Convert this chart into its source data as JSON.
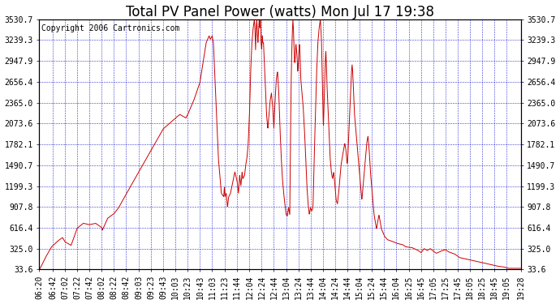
{
  "title": "Total PV Panel Power (watts) Mon Jul 17 19:38",
  "copyright": "Copyright 2006 Cartronics.com",
  "background_color": "#ffffff",
  "plot_background": "#ffffff",
  "line_color": "#cc0000",
  "grid_color": "#0000cc",
  "yticks": [
    33.6,
    325.0,
    616.4,
    907.8,
    1199.3,
    1490.7,
    1782.1,
    2073.6,
    2365.0,
    2656.4,
    2947.9,
    3239.3,
    3530.7
  ],
  "ylim": [
    33.6,
    3530.7
  ],
  "title_fontsize": 12,
  "tick_fontsize": 7,
  "copyright_fontsize": 7,
  "xtick_labels": [
    "06:20",
    "06:42",
    "07:02",
    "07:22",
    "07:42",
    "08:02",
    "08:22",
    "08:42",
    "09:03",
    "09:23",
    "09:43",
    "10:03",
    "10:23",
    "10:43",
    "11:03",
    "11:23",
    "11:44",
    "12:04",
    "12:24",
    "12:44",
    "13:04",
    "13:24",
    "13:44",
    "14:04",
    "14:24",
    "14:44",
    "15:04",
    "15:24",
    "15:44",
    "16:04",
    "16:25",
    "16:45",
    "17:05",
    "17:25",
    "17:45",
    "18:05",
    "18:25",
    "18:45",
    "19:05",
    "19:28"
  ],
  "curve_points": [
    [
      380,
      33.6
    ],
    [
      382,
      60
    ],
    [
      390,
      200
    ],
    [
      400,
      350
    ],
    [
      410,
      430
    ],
    [
      418,
      480
    ],
    [
      422,
      420
    ],
    [
      432,
      370
    ],
    [
      442,
      610
    ],
    [
      452,
      680
    ],
    [
      462,
      660
    ],
    [
      472,
      680
    ],
    [
      482,
      620
    ],
    [
      483,
      580
    ],
    [
      492,
      750
    ],
    [
      503,
      820
    ],
    [
      510,
      900
    ],
    [
      523,
      1100
    ],
    [
      543,
      1400
    ],
    [
      563,
      1700
    ],
    [
      583,
      2000
    ],
    [
      603,
      2150
    ],
    [
      610,
      2200
    ],
    [
      620,
      2150
    ],
    [
      623,
      2200
    ],
    [
      633,
      2400
    ],
    [
      643,
      2650
    ],
    [
      653,
      3200
    ],
    [
      658,
      3300
    ],
    [
      660,
      3250
    ],
    [
      663,
      3300
    ],
    [
      665,
      3200
    ],
    [
      667,
      2800
    ],
    [
      670,
      2200
    ],
    [
      673,
      1600
    ],
    [
      676,
      1300
    ],
    [
      678,
      1100
    ],
    [
      682,
      1050
    ],
    [
      683,
      1200
    ],
    [
      684,
      1050
    ],
    [
      686,
      1100
    ],
    [
      688,
      900
    ],
    [
      690,
      1050
    ],
    [
      693,
      1100
    ],
    [
      700,
      1400
    ],
    [
      703,
      1300
    ],
    [
      704,
      1250
    ],
    [
      706,
      1100
    ],
    [
      708,
      1350
    ],
    [
      710,
      1200
    ],
    [
      712,
      1400
    ],
    [
      713,
      1300
    ],
    [
      716,
      1350
    ],
    [
      718,
      1500
    ],
    [
      720,
      1600
    ],
    [
      722,
      1800
    ],
    [
      724,
      2200
    ],
    [
      726,
      2800
    ],
    [
      728,
      3200
    ],
    [
      730,
      3400
    ],
    [
      732,
      3530
    ],
    [
      733,
      3400
    ],
    [
      734,
      3100
    ],
    [
      735,
      3400
    ],
    [
      736,
      3530
    ],
    [
      737,
      3300
    ],
    [
      738,
      3200
    ],
    [
      739,
      3400
    ],
    [
      740,
      3530
    ],
    [
      741,
      3400
    ],
    [
      742,
      3530
    ],
    [
      743,
      3200
    ],
    [
      744,
      3100
    ],
    [
      745,
      3300
    ],
    [
      746,
      3200
    ],
    [
      747,
      3200
    ],
    [
      748,
      3000
    ],
    [
      749,
      2800
    ],
    [
      750,
      2600
    ],
    [
      751,
      2400
    ],
    [
      752,
      2200
    ],
    [
      753,
      2100
    ],
    [
      754,
      2000
    ],
    [
      756,
      2200
    ],
    [
      758,
      2400
    ],
    [
      760,
      2500
    ],
    [
      762,
      2300
    ],
    [
      764,
      2000
    ],
    [
      766,
      2400
    ],
    [
      768,
      2700
    ],
    [
      770,
      2800
    ],
    [
      772,
      2500
    ],
    [
      774,
      2000
    ],
    [
      776,
      1600
    ],
    [
      778,
      1300
    ],
    [
      780,
      1100
    ],
    [
      782,
      950
    ],
    [
      784,
      800
    ],
    [
      786,
      780
    ],
    [
      788,
      900
    ],
    [
      790,
      800
    ],
    [
      792,
      2500
    ],
    [
      793,
      3000
    ],
    [
      794,
      3300
    ],
    [
      795,
      3530
    ],
    [
      796,
      3400
    ],
    [
      797,
      3100
    ],
    [
      798,
      2900
    ],
    [
      799,
      3000
    ],
    [
      800,
      3200
    ],
    [
      801,
      3100
    ],
    [
      802,
      3000
    ],
    [
      803,
      2800
    ],
    [
      804,
      2900
    ],
    [
      805,
      3100
    ],
    [
      806,
      3200
    ],
    [
      807,
      3000
    ],
    [
      808,
      2700
    ],
    [
      810,
      2500
    ],
    [
      812,
      2300
    ],
    [
      814,
      2000
    ],
    [
      816,
      1600
    ],
    [
      818,
      1200
    ],
    [
      820,
      950
    ],
    [
      822,
      800
    ],
    [
      824,
      900
    ],
    [
      826,
      850
    ],
    [
      828,
      900
    ],
    [
      830,
      1600
    ],
    [
      832,
      2200
    ],
    [
      834,
      2800
    ],
    [
      836,
      3200
    ],
    [
      838,
      3400
    ],
    [
      840,
      3530
    ],
    [
      841,
      3400
    ],
    [
      842,
      3200
    ],
    [
      843,
      2800
    ],
    [
      844,
      2400
    ],
    [
      845,
      2000
    ],
    [
      846,
      2300
    ],
    [
      847,
      2600
    ],
    [
      848,
      2900
    ],
    [
      849,
      3100
    ],
    [
      850,
      2900
    ],
    [
      851,
      2600
    ],
    [
      852,
      2400
    ],
    [
      853,
      2200
    ],
    [
      854,
      2000
    ],
    [
      855,
      1800
    ],
    [
      856,
      1600
    ],
    [
      858,
      1400
    ],
    [
      860,
      1300
    ],
    [
      862,
      1400
    ],
    [
      864,
      1200
    ],
    [
      866,
      1000
    ],
    [
      868,
      950
    ],
    [
      870,
      1100
    ],
    [
      872,
      1300
    ],
    [
      874,
      1500
    ],
    [
      876,
      1600
    ],
    [
      878,
      1700
    ],
    [
      880,
      1800
    ],
    [
      882,
      1700
    ],
    [
      884,
      1500
    ],
    [
      885,
      1600
    ],
    [
      886,
      1800
    ],
    [
      887,
      2000
    ],
    [
      888,
      2200
    ],
    [
      889,
      2400
    ],
    [
      890,
      2600
    ],
    [
      891,
      2800
    ],
    [
      892,
      2900
    ],
    [
      893,
      2800
    ],
    [
      894,
      2600
    ],
    [
      895,
      2400
    ],
    [
      896,
      2200
    ],
    [
      898,
      2000
    ],
    [
      900,
      1800
    ],
    [
      902,
      1600
    ],
    [
      904,
      1400
    ],
    [
      906,
      1200
    ],
    [
      908,
      1000
    ],
    [
      910,
      1200
    ],
    [
      912,
      1400
    ],
    [
      914,
      1600
    ],
    [
      916,
      1800
    ],
    [
      918,
      1900
    ],
    [
      920,
      1700
    ],
    [
      922,
      1400
    ],
    [
      924,
      1200
    ],
    [
      926,
      1000
    ],
    [
      928,
      800
    ],
    [
      930,
      700
    ],
    [
      932,
      600
    ],
    [
      934,
      700
    ],
    [
      936,
      800
    ],
    [
      938,
      700
    ],
    [
      940,
      600
    ],
    [
      945,
      500
    ],
    [
      950,
      450
    ],
    [
      960,
      420
    ],
    [
      965,
      400
    ],
    [
      975,
      380
    ],
    [
      980,
      350
    ],
    [
      990,
      340
    ],
    [
      1000,
      300
    ],
    [
      1005,
      270
    ],
    [
      1010,
      325
    ],
    [
      1015,
      300
    ],
    [
      1020,
      325
    ],
    [
      1025,
      290
    ],
    [
      1030,
      260
    ],
    [
      1035,
      280
    ],
    [
      1040,
      300
    ],
    [
      1045,
      310
    ],
    [
      1050,
      280
    ],
    [
      1060,
      250
    ],
    [
      1068,
      200
    ],
    [
      1100,
      140
    ],
    [
      1110,
      120
    ],
    [
      1120,
      100
    ],
    [
      1130,
      80
    ],
    [
      1140,
      70
    ],
    [
      1148,
      50
    ]
  ]
}
